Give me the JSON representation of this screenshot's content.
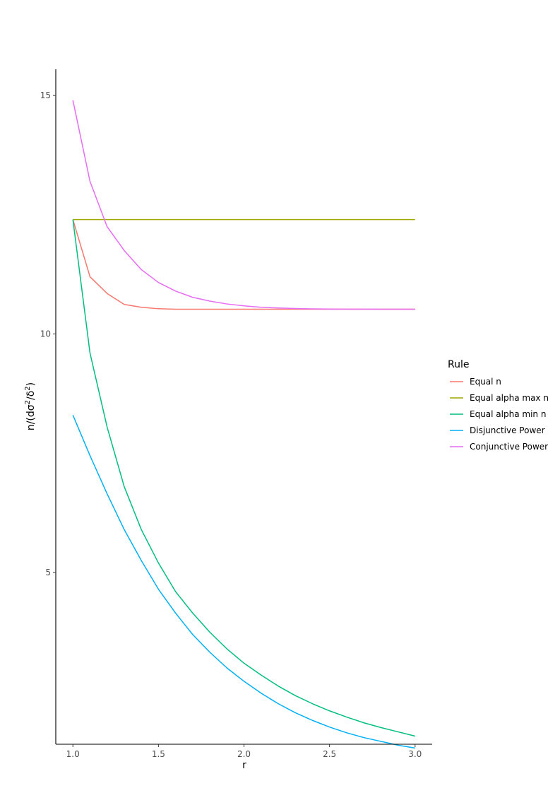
{
  "chart_data": {
    "type": "line",
    "xlabel": "r",
    "xlim": [
      0.9,
      3.1
    ],
    "ylim": [
      1.4,
      15.55
    ],
    "x_ticks": [
      1.0,
      1.5,
      2.0,
      2.5,
      3.0
    ],
    "x_tick_labels": [
      "1.0",
      "1.5",
      "2.0",
      "2.5",
      "3.0"
    ],
    "y_ticks": [
      5,
      10,
      15
    ],
    "y_tick_labels": [
      "5",
      "10",
      "15"
    ],
    "grid": false,
    "legend": {
      "title": "Rule",
      "placement": "right"
    },
    "x": [
      1.0,
      1.1,
      1.2,
      1.3,
      1.4,
      1.5,
      1.6,
      1.7,
      1.8,
      1.9,
      2.0,
      2.1,
      2.2,
      2.3,
      2.4,
      2.5,
      2.6,
      2.7,
      2.8,
      2.9,
      3.0
    ],
    "series": [
      {
        "name": "Equal n",
        "color": "#F8766D",
        "values": [
          12.4,
          11.2,
          10.85,
          10.62,
          10.56,
          10.53,
          10.52,
          10.52,
          10.52,
          10.52,
          10.52,
          10.52,
          10.52,
          10.52,
          10.52,
          10.52,
          10.52,
          10.52,
          10.52,
          10.52,
          10.52
        ]
      },
      {
        "name": "Equal alpha max n",
        "color": "#A3A500",
        "values": [
          12.4,
          12.4,
          12.4,
          12.4,
          12.4,
          12.4,
          12.4,
          12.4,
          12.4,
          12.4,
          12.4,
          12.4,
          12.4,
          12.4,
          12.4,
          12.4,
          12.4,
          12.4,
          12.4,
          12.4,
          12.4
        ]
      },
      {
        "name": "Equal alpha min n",
        "color": "#00BF7D",
        "values": [
          12.4,
          9.6,
          8.05,
          6.8,
          5.9,
          5.2,
          4.6,
          4.15,
          3.75,
          3.4,
          3.1,
          2.85,
          2.62,
          2.42,
          2.25,
          2.1,
          1.97,
          1.85,
          1.75,
          1.66,
          1.57
        ]
      },
      {
        "name": "Disjunctive Power",
        "color": "#00B0F6",
        "values": [
          8.3,
          7.45,
          6.65,
          5.9,
          5.25,
          4.65,
          4.15,
          3.7,
          3.33,
          3.0,
          2.72,
          2.47,
          2.25,
          2.06,
          1.9,
          1.76,
          1.64,
          1.54,
          1.46,
          1.38,
          1.32
        ]
      },
      {
        "name": "Conjunctive Power",
        "color": "#E76BF3",
        "values": [
          14.9,
          13.2,
          12.25,
          11.75,
          11.35,
          11.08,
          10.9,
          10.77,
          10.69,
          10.63,
          10.59,
          10.56,
          10.545,
          10.535,
          10.528,
          10.524,
          10.522,
          10.521,
          10.52,
          10.52,
          10.52
        ]
      }
    ]
  }
}
